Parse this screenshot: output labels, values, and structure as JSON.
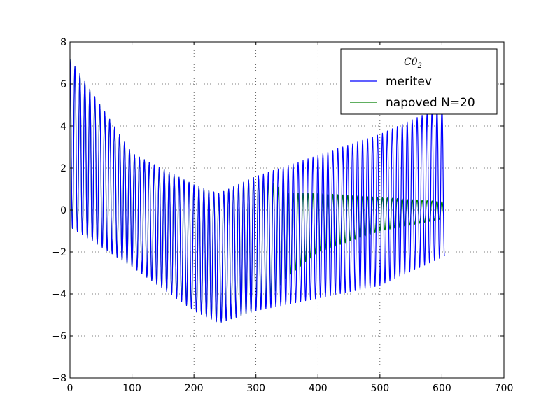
{
  "chart_data": {
    "type": "line",
    "xlim": [
      0,
      700
    ],
    "ylim": [
      -8,
      8
    ],
    "x_ticks": [
      0,
      100,
      200,
      300,
      400,
      500,
      600,
      700
    ],
    "y_ticks": [
      -8,
      -6,
      -4,
      -2,
      0,
      2,
      4,
      6,
      8
    ],
    "x_tick_labels": [
      "0",
      "100",
      "200",
      "300",
      "400",
      "500",
      "600",
      "700"
    ],
    "y_tick_labels": [
      "−8",
      "−6",
      "−4",
      "−2",
      "0",
      "2",
      "4",
      "6",
      "8"
    ],
    "grid": true,
    "legend": {
      "position": "top-right",
      "title_main": "C0",
      "title_sub": "2"
    },
    "series": [
      {
        "name": "meritev",
        "color": "#0000ff",
        "period": 8,
        "x_start": 0,
        "x_end": 604,
        "trend": [
          [
            0,
            3.2
          ],
          [
            100,
            0.0
          ],
          [
            200,
            -1.8
          ],
          [
            240,
            -2.3
          ],
          [
            300,
            -1.6
          ],
          [
            400,
            -0.8
          ],
          [
            500,
            0.0
          ],
          [
            604,
            1.4
          ]
        ],
        "amplitude": [
          [
            0,
            4.0
          ],
          [
            100,
            2.7
          ],
          [
            200,
            3.0
          ],
          [
            300,
            3.2
          ],
          [
            400,
            3.4
          ],
          [
            500,
            3.6
          ],
          [
            604,
            3.6
          ]
        ]
      },
      {
        "name": "napoved N=20",
        "color": "#007f00",
        "period": 8,
        "x_start": 0,
        "x_end": 604,
        "trend": [
          [
            0,
            3.2
          ],
          [
            100,
            0.0
          ],
          [
            200,
            -1.8
          ],
          [
            240,
            -2.3
          ],
          [
            300,
            -1.6
          ],
          [
            350,
            -1.2
          ],
          [
            400,
            -0.6
          ],
          [
            450,
            -0.4
          ],
          [
            500,
            -0.2
          ],
          [
            604,
            0.0
          ]
        ],
        "amplitude": [
          [
            0,
            4.0
          ],
          [
            100,
            2.7
          ],
          [
            200,
            3.0
          ],
          [
            300,
            3.2
          ],
          [
            315,
            3.0
          ],
          [
            350,
            2.0
          ],
          [
            400,
            1.4
          ],
          [
            450,
            1.1
          ],
          [
            500,
            0.8
          ],
          [
            604,
            0.4
          ]
        ]
      }
    ]
  }
}
